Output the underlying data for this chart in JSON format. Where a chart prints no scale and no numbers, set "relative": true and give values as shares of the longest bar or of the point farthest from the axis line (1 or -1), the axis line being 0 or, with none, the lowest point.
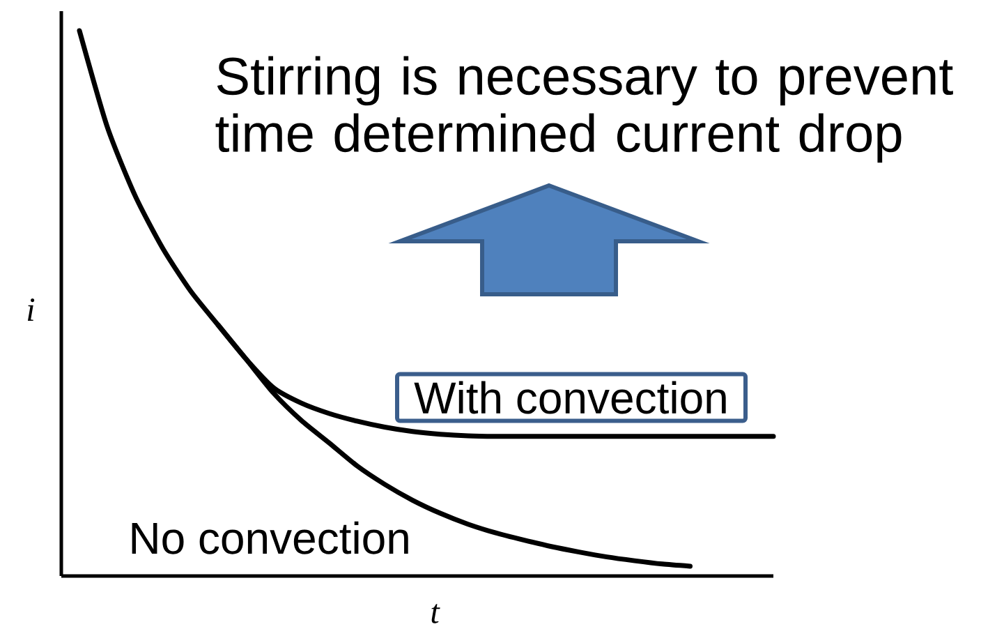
{
  "chart_data": {
    "type": "line",
    "relative": true,
    "xlabel": "t",
    "ylabel": "i",
    "annotations": [
      "Stirring is necessary to prevent time determined current drop"
    ],
    "categories": [
      null,
      null,
      null,
      null,
      null,
      null,
      null,
      null,
      null,
      null,
      null,
      null,
      null,
      null,
      null,
      null,
      null,
      null,
      null,
      null,
      null,
      null,
      null,
      null,
      null,
      null
    ],
    "series": [
      {
        "name": "No convection",
        "color": "#000000",
        "values": [
          1.0,
          0.824,
          0.698,
          0.601,
          0.523,
          0.46,
          0.398,
          0.335,
          0.285,
          0.244,
          0.202,
          0.168,
          0.139,
          0.115,
          0.095,
          0.079,
          0.066,
          0.054,
          0.044,
          0.035,
          0.028,
          0.022,
          0.018,
          null,
          null,
          null
        ]
      },
      {
        "name": "With convection",
        "color": "#000000",
        "values": [
          null,
          null,
          null,
          null,
          null,
          0.46,
          0.398,
          0.345,
          0.317,
          0.298,
          0.284,
          0.273,
          0.265,
          0.26,
          0.257,
          0.256,
          0.256,
          0.256,
          0.256,
          0.256,
          0.256,
          0.256,
          0.256,
          0.256,
          0.256,
          0.256
        ]
      }
    ]
  }
}
